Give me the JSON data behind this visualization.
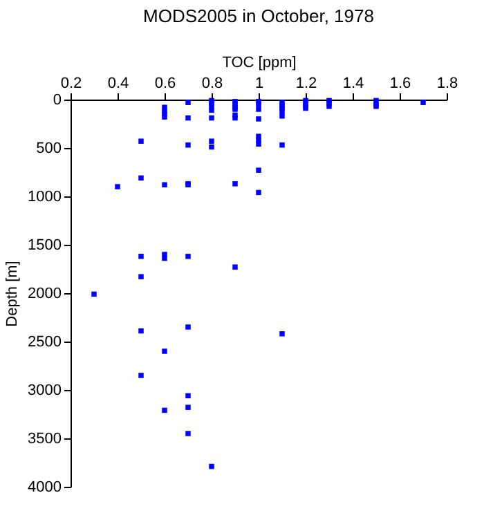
{
  "chart_data": {
    "type": "scatter",
    "title": "MODS2005 in October, 1978",
    "xlabel": "TOC [ppm]",
    "ylabel": "Depth [m]",
    "xlim": [
      0.2,
      1.8
    ],
    "xticks": [
      0.2,
      0.4,
      0.6,
      0.8,
      1,
      1.2,
      1.4,
      1.6,
      1.8
    ],
    "ylim": [
      4000,
      0
    ],
    "yticks": [
      0,
      500,
      1000,
      1500,
      2000,
      2500,
      3000,
      3500,
      4000
    ],
    "grid": false,
    "marker": "square",
    "series": [
      {
        "color": "#0000ff",
        "x": [
          0.6,
          0.6,
          0.6,
          0.6,
          0.7,
          0.7,
          0.7,
          0.7,
          0.7,
          0.8,
          0.8,
          0.8,
          0.8,
          0.8,
          0.8,
          0.8,
          0.9,
          0.9,
          0.9,
          0.9,
          0.9,
          0.9,
          0.9,
          1,
          1,
          1,
          1,
          1,
          1,
          1,
          1,
          1,
          1.1,
          1.1,
          1.1,
          1.1,
          1.1,
          1.1,
          1.2,
          1.2,
          1.2,
          1.2,
          1.3,
          1.3,
          1.3,
          1.5,
          1.5,
          1.5,
          1.7,
          0.5,
          0.5,
          0.4,
          0.6,
          0.5,
          0.5,
          0.5,
          0.5,
          0.6,
          0.6,
          0.6,
          0.6,
          0.7,
          0.7,
          0.7,
          0.7,
          0.7,
          0.9,
          0.3,
          1.1,
          0.8
        ],
        "values": [
          80,
          120,
          150,
          180,
          30,
          190,
          470,
          870,
          880,
          10,
          40,
          70,
          110,
          190,
          430,
          490,
          20,
          50,
          80,
          100,
          160,
          190,
          870,
          20,
          50,
          100,
          200,
          380,
          420,
          460,
          730,
          960,
          30,
          60,
          90,
          120,
          170,
          470,
          10,
          40,
          70,
          90,
          10,
          40,
          70,
          10,
          50,
          70,
          30,
          430,
          810,
          900,
          880,
          1620,
          1830,
          2390,
          2850,
          1600,
          1640,
          2600,
          3210,
          1620,
          2350,
          3060,
          3180,
          3450,
          1730,
          2010,
          2420,
          3790
        ]
      }
    ]
  }
}
